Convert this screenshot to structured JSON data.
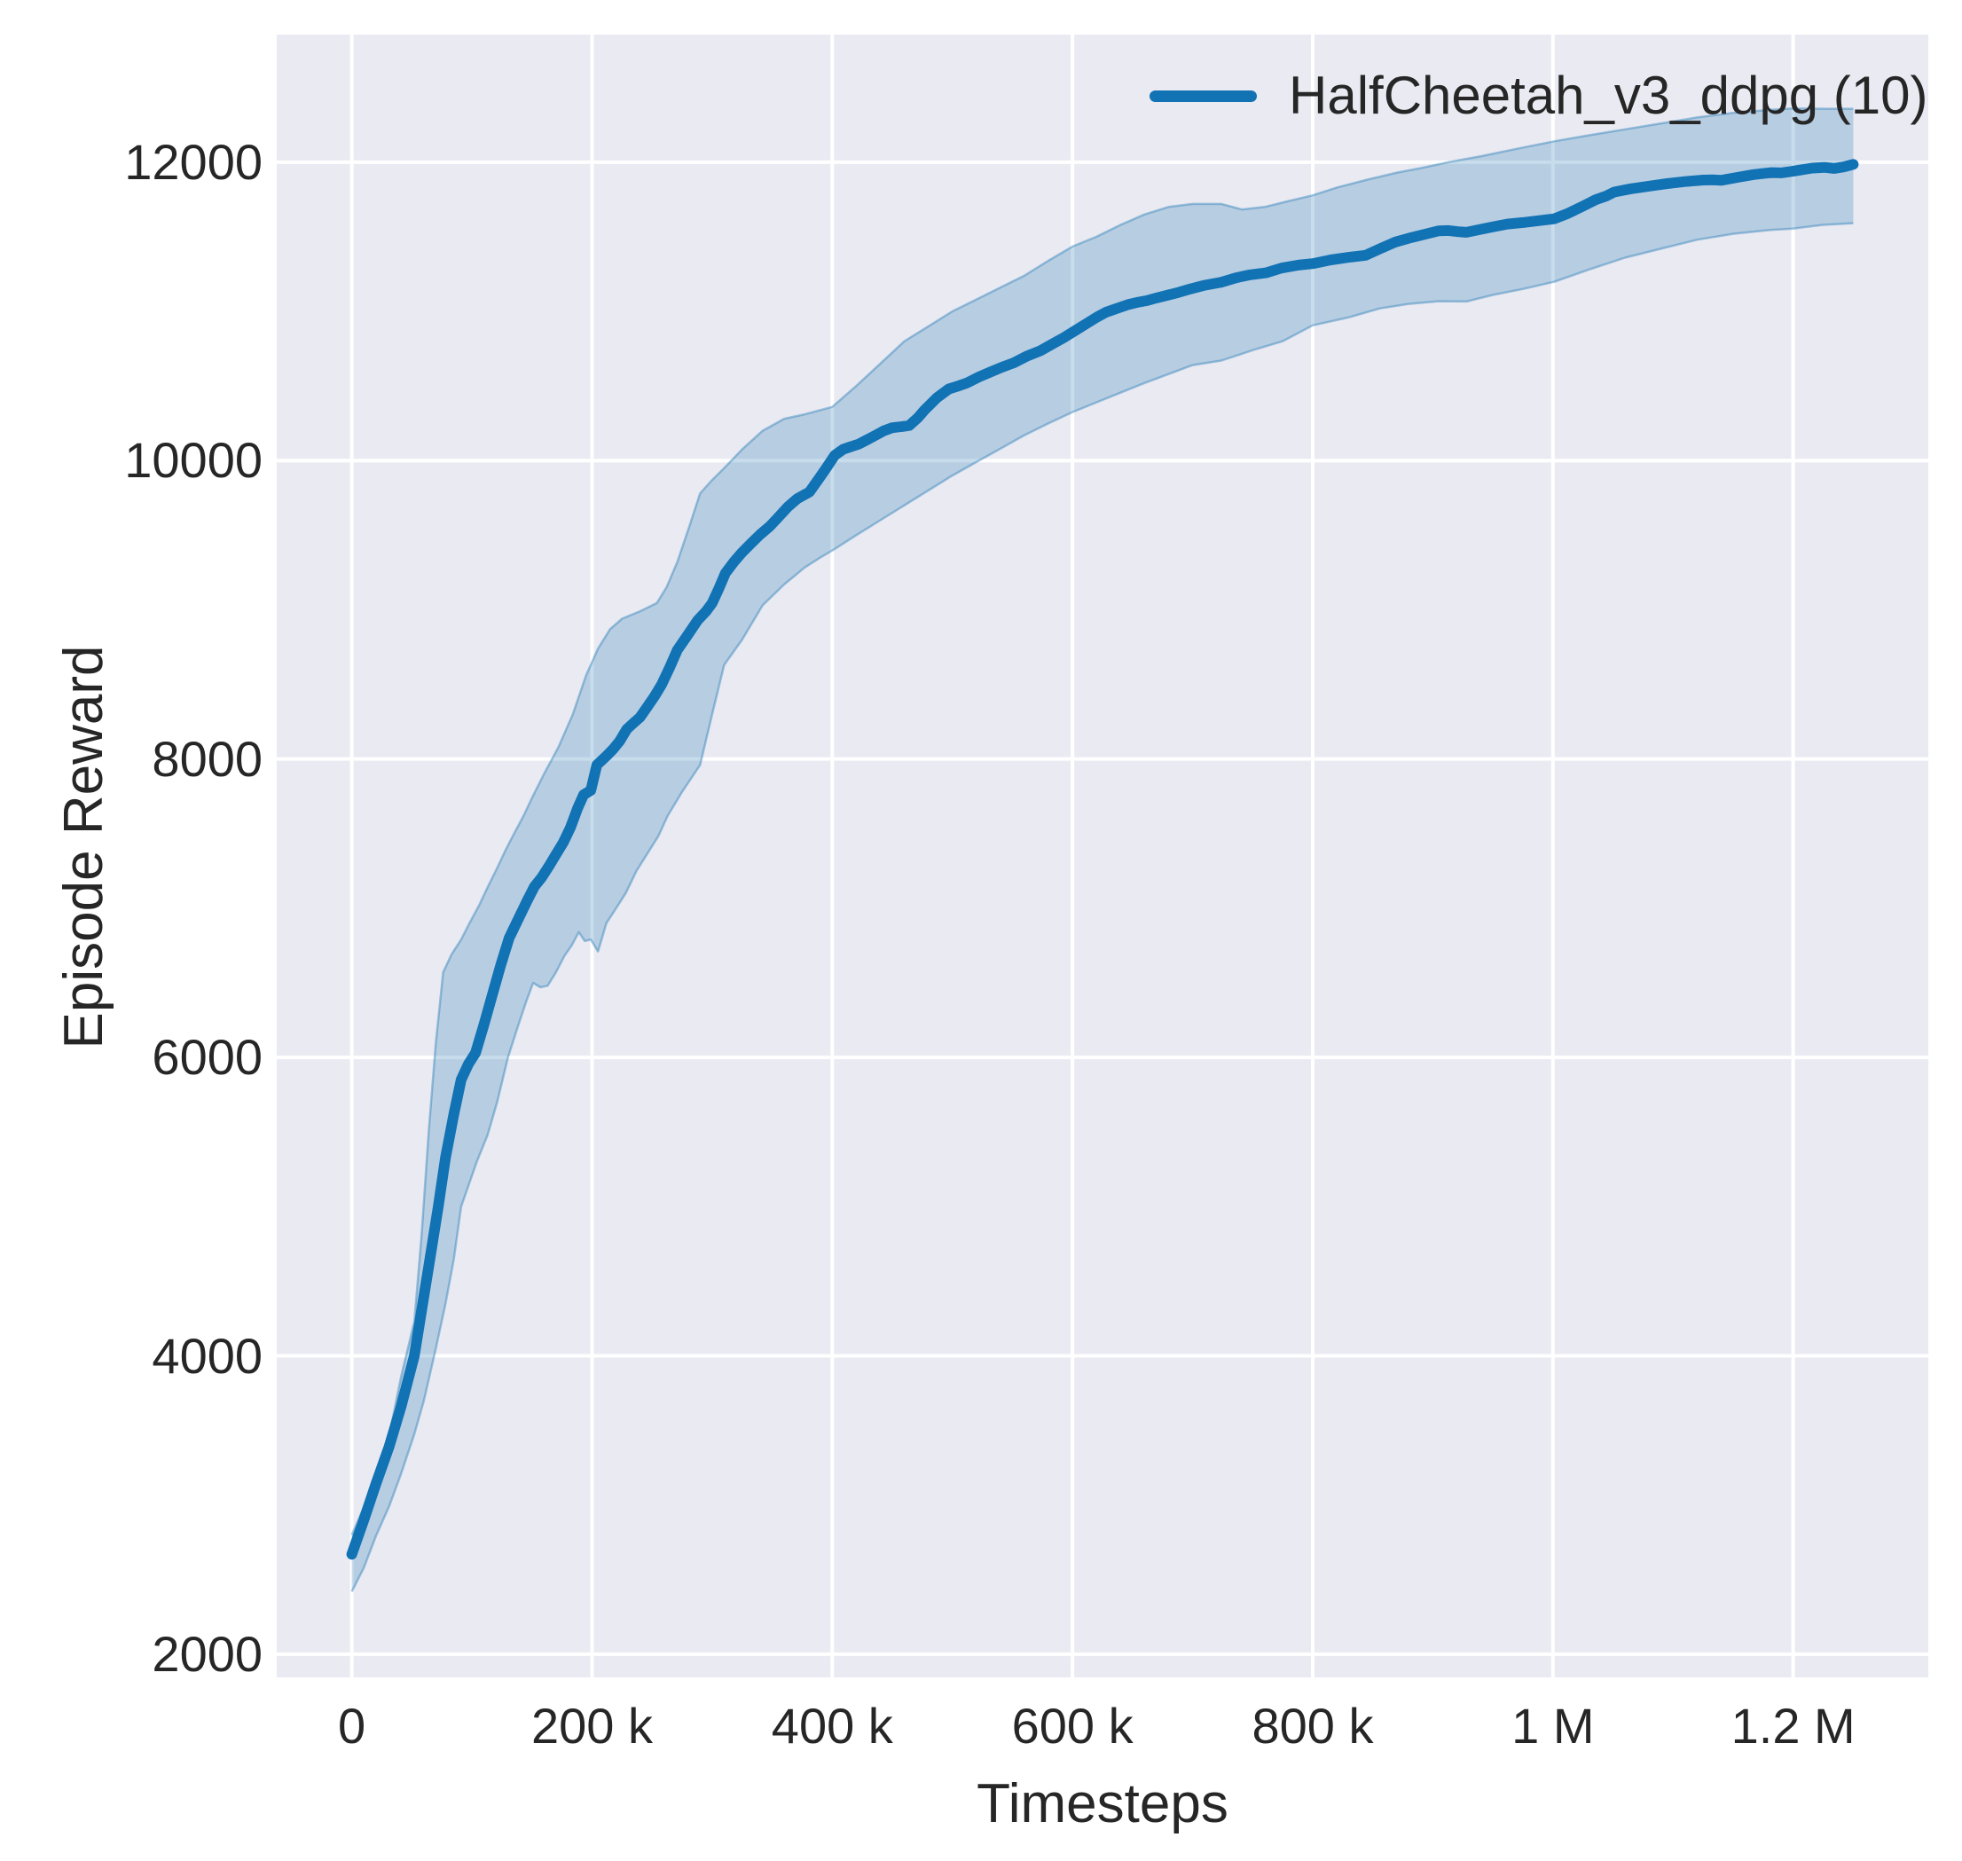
{
  "figure": {
    "background": "#ffffff"
  },
  "chart_data": {
    "type": "line",
    "title": "",
    "xlabel": "Timesteps",
    "ylabel": "Episode Reward",
    "grid": true,
    "legend_position": "upper right",
    "plot_bg": "#eaeaf2",
    "grid_color": "#ffffff",
    "text_color": "#262626",
    "xlim": [
      -62500,
      1312500
    ],
    "ylim": [
      1845,
      12855
    ],
    "x_ticks": {
      "values": [
        0,
        200000,
        400000,
        600000,
        800000,
        1000000,
        1200000
      ],
      "labels": [
        "0",
        "200 k",
        "400 k",
        "600 k",
        "800 k",
        "1 M",
        "1.2 M"
      ]
    },
    "y_ticks": {
      "values": [
        2000,
        4000,
        6000,
        8000,
        10000,
        12000
      ],
      "labels": [
        "2000",
        "4000",
        "6000",
        "8000",
        "10000",
        "12000"
      ]
    },
    "legend": {
      "entries": [
        {
          "label": "HalfCheetah_v3_ddpg (10)",
          "color": "#1172b4"
        }
      ]
    },
    "series": [
      {
        "name": "HalfCheetah_v3_ddpg (10)",
        "color": "#1172b4",
        "line_width": 12,
        "x": [
          0,
          10000,
          20000,
          31000,
          41000,
          52000,
          58000,
          65000,
          72000,
          78000,
          85000,
          91000,
          97000,
          103000,
          110000,
          117000,
          124000,
          131000,
          140000,
          146000,
          152000,
          158000,
          164000,
          170000,
          176000,
          182000,
          188000,
          193000,
          199000,
          204000,
          212000,
          218000,
          223000,
          229000,
          235000,
          240000,
          246000,
          252000,
          258000,
          265000,
          271000,
          280000,
          288000,
          295000,
          300000,
          306000,
          311000,
          318000,
          325000,
          333000,
          340000,
          348000,
          355000,
          363000,
          371000,
          381000,
          389000,
          395000,
          402000,
          409000,
          416000,
          422000,
          428000,
          435000,
          443000,
          450000,
          458000,
          464000,
          471000,
          477000,
          487000,
          497000,
          505000,
          512000,
          522000,
          532000,
          541000,
          551000,
          562000,
          573000,
          583000,
          592000,
          600000,
          610000,
          620000,
          628000,
          637000,
          646000,
          655000,
          662000,
          670000,
          680000,
          688000,
          698000,
          710000,
          724000,
          736000,
          748000,
          761000,
          774000,
          788000,
          800000,
          815000,
          830000,
          844000,
          856000,
          869000,
          880000,
          895000,
          905000,
          913000,
          921000,
          928000,
          940000,
          950000,
          962000,
          975000,
          988000,
          1001000,
          1012000,
          1025000,
          1036000,
          1044000,
          1051000,
          1065000,
          1081000,
          1095000,
          1110000,
          1125000,
          1133000,
          1140000,
          1155000,
          1167000,
          1176000,
          1182000,
          1190000,
          1199000,
          1208000,
          1216000,
          1226000,
          1234000,
          1242000,
          1250000
        ],
        "y": [
          2670,
          2900,
          3140,
          3390,
          3660,
          4000,
          4300,
          4650,
          5000,
          5330,
          5620,
          5850,
          5955,
          6030,
          6220,
          6420,
          6620,
          6800,
          6950,
          7050,
          7145,
          7205,
          7280,
          7360,
          7440,
          7540,
          7670,
          7760,
          7790,
          7960,
          8020,
          8070,
          8120,
          8200,
          8245,
          8280,
          8350,
          8420,
          8500,
          8620,
          8730,
          8835,
          8930,
          8990,
          9045,
          9150,
          9245,
          9320,
          9385,
          9450,
          9505,
          9560,
          9620,
          9690,
          9745,
          9790,
          9880,
          9950,
          10035,
          10075,
          10095,
          10110,
          10135,
          10165,
          10200,
          10220,
          10228,
          10235,
          10285,
          10340,
          10420,
          10480,
          10500,
          10520,
          10560,
          10595,
          10625,
          10655,
          10700,
          10735,
          10780,
          10820,
          10860,
          10910,
          10960,
          10995,
          11020,
          11045,
          11062,
          11072,
          11090,
          11110,
          11126,
          11150,
          11175,
          11196,
          11225,
          11245,
          11258,
          11290,
          11310,
          11320,
          11345,
          11362,
          11376,
          11420,
          11465,
          11490,
          11520,
          11540,
          11542,
          11534,
          11530,
          11550,
          11566,
          11585,
          11595,
          11608,
          11620,
          11655,
          11705,
          11750,
          11772,
          11800,
          11822,
          11840,
          11856,
          11870,
          11880,
          11882,
          11878,
          11900,
          11917,
          11925,
          11930,
          11928,
          11938,
          11950,
          11960,
          11965,
          11958,
          11968,
          11985
        ]
      }
    ],
    "band": {
      "fill": "rgba(31,119,180,0.25)",
      "edge": "rgba(31,119,180,0.4)",
      "lower": [
        [
          0,
          2420
        ],
        [
          10000,
          2580
        ],
        [
          20000,
          2790
        ],
        [
          31000,
          2990
        ],
        [
          41000,
          3210
        ],
        [
          52000,
          3475
        ],
        [
          60000,
          3700
        ],
        [
          70000,
          4050
        ],
        [
          78000,
          4350
        ],
        [
          85000,
          4650
        ],
        [
          91000,
          5000
        ],
        [
          98000,
          5160
        ],
        [
          104000,
          5300
        ],
        [
          113000,
          5480
        ],
        [
          121000,
          5700
        ],
        [
          130000,
          6000
        ],
        [
          138000,
          6200
        ],
        [
          145000,
          6370
        ],
        [
          151000,
          6500
        ],
        [
          157000,
          6470
        ],
        [
          163000,
          6480
        ],
        [
          170000,
          6570
        ],
        [
          177000,
          6680
        ],
        [
          183000,
          6750
        ],
        [
          189000,
          6840
        ],
        [
          194000,
          6780
        ],
        [
          199000,
          6790
        ],
        [
          205000,
          6710
        ],
        [
          212000,
          6900
        ],
        [
          220000,
          7000
        ],
        [
          228000,
          7100
        ],
        [
          237000,
          7250
        ],
        [
          244000,
          7340
        ],
        [
          255000,
          7480
        ],
        [
          263000,
          7620
        ],
        [
          275000,
          7780
        ],
        [
          290000,
          7960
        ],
        [
          300000,
          8300
        ],
        [
          310000,
          8630
        ],
        [
          325000,
          8800
        ],
        [
          342000,
          9030
        ],
        [
          360000,
          9170
        ],
        [
          377000,
          9283
        ],
        [
          390000,
          9350
        ],
        [
          401000,
          9402
        ],
        [
          420000,
          9500
        ],
        [
          440000,
          9600
        ],
        [
          460000,
          9700
        ],
        [
          480000,
          9800
        ],
        [
          500000,
          9900
        ],
        [
          520000,
          9990
        ],
        [
          540000,
          10080
        ],
        [
          560000,
          10170
        ],
        [
          580000,
          10250
        ],
        [
          600000,
          10325
        ],
        [
          620000,
          10390
        ],
        [
          640000,
          10455
        ],
        [
          660000,
          10520
        ],
        [
          680000,
          10580
        ],
        [
          700000,
          10640
        ],
        [
          724000,
          10670
        ],
        [
          750000,
          10740
        ],
        [
          775000,
          10800
        ],
        [
          800000,
          10906
        ],
        [
          830000,
          10960
        ],
        [
          856000,
          11020
        ],
        [
          880000,
          11050
        ],
        [
          905000,
          11068
        ],
        [
          928000,
          11066
        ],
        [
          950000,
          11110
        ],
        [
          975000,
          11150
        ],
        [
          1001000,
          11198
        ],
        [
          1030000,
          11280
        ],
        [
          1060000,
          11360
        ],
        [
          1090000,
          11420
        ],
        [
          1120000,
          11480
        ],
        [
          1150000,
          11520
        ],
        [
          1180000,
          11545
        ],
        [
          1200000,
          11555
        ],
        [
          1225000,
          11580
        ],
        [
          1250000,
          11591
        ]
      ],
      "upper": [
        [
          0,
          2800
        ],
        [
          10000,
          2985
        ],
        [
          20000,
          3210
        ],
        [
          31000,
          3460
        ],
        [
          41000,
          3860
        ],
        [
          52000,
          4230
        ],
        [
          58000,
          4800
        ],
        [
          64000,
          5500
        ],
        [
          70000,
          6100
        ],
        [
          76000,
          6570
        ],
        [
          83000,
          6690
        ],
        [
          91000,
          6790
        ],
        [
          98000,
          6900
        ],
        [
          106000,
          7020
        ],
        [
          113000,
          7140
        ],
        [
          121000,
          7270
        ],
        [
          128000,
          7390
        ],
        [
          135000,
          7500
        ],
        [
          143000,
          7620
        ],
        [
          150000,
          7740
        ],
        [
          160000,
          7900
        ],
        [
          172000,
          8080
        ],
        [
          184000,
          8300
        ],
        [
          195000,
          8560
        ],
        [
          205000,
          8740
        ],
        [
          215000,
          8870
        ],
        [
          225000,
          8940
        ],
        [
          240000,
          8990
        ],
        [
          254000,
          9046
        ],
        [
          262000,
          9150
        ],
        [
          271000,
          9320
        ],
        [
          281000,
          9560
        ],
        [
          290000,
          9780
        ],
        [
          300000,
          9870
        ],
        [
          310000,
          9950
        ],
        [
          325000,
          10075
        ],
        [
          342000,
          10200
        ],
        [
          360000,
          10280
        ],
        [
          377000,
          10310
        ],
        [
          400000,
          10360
        ],
        [
          420000,
          10500
        ],
        [
          440000,
          10650
        ],
        [
          460000,
          10800
        ],
        [
          480000,
          10900
        ],
        [
          500000,
          11000
        ],
        [
          520000,
          11080
        ],
        [
          540000,
          11160
        ],
        [
          560000,
          11240
        ],
        [
          580000,
          11340
        ],
        [
          600000,
          11435
        ],
        [
          620000,
          11500
        ],
        [
          640000,
          11580
        ],
        [
          660000,
          11650
        ],
        [
          680000,
          11700
        ],
        [
          700000,
          11720
        ],
        [
          724000,
          11720
        ],
        [
          741000,
          11683
        ],
        [
          760000,
          11700
        ],
        [
          780000,
          11740
        ],
        [
          800000,
          11778
        ],
        [
          820000,
          11830
        ],
        [
          844000,
          11880
        ],
        [
          870000,
          11930
        ],
        [
          890000,
          11960
        ],
        [
          913000,
          12000
        ],
        [
          940000,
          12040
        ],
        [
          970000,
          12090
        ],
        [
          1001000,
          12140
        ],
        [
          1030000,
          12180
        ],
        [
          1060000,
          12220
        ],
        [
          1090000,
          12260
        ],
        [
          1120000,
          12300
        ],
        [
          1150000,
          12330
        ],
        [
          1180000,
          12350
        ],
        [
          1200000,
          12360
        ],
        [
          1225000,
          12358
        ],
        [
          1250000,
          12358
        ]
      ]
    }
  }
}
